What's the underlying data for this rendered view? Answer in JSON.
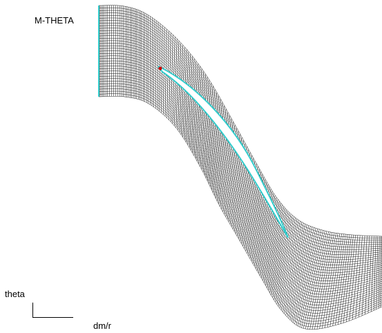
{
  "title": "M-THETA",
  "axes": {
    "vertical": "theta",
    "horizontal": "dm/r"
  }
}
